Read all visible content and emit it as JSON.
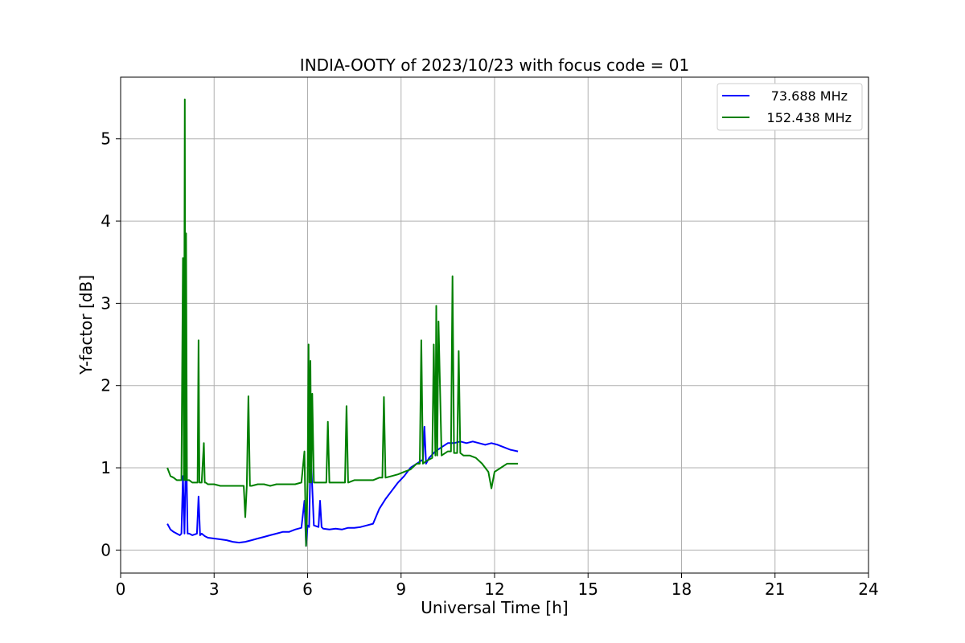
{
  "chart_data": {
    "type": "line",
    "title": "INDIA-OOTY of 2023/10/23 with focus code = 01",
    "xlabel": "Universal Time [h]",
    "ylabel": "Y-factor [dB]",
    "xlim": [
      0,
      24
    ],
    "ylim": [
      -0.28,
      5.75
    ],
    "xticks": [
      0,
      3,
      6,
      9,
      12,
      15,
      18,
      21,
      24
    ],
    "yticks": [
      0,
      1,
      2,
      3,
      4,
      5
    ],
    "grid": true,
    "legend_position": "top-right",
    "series": [
      {
        "name": "73.688 MHz",
        "color": "#0000ff",
        "x": [
          1.5,
          1.6,
          1.7,
          1.8,
          1.9,
          1.95,
          2.0,
          2.05,
          2.1,
          2.15,
          2.2,
          2.3,
          2.45,
          2.5,
          2.55,
          2.6,
          2.7,
          2.8,
          3.0,
          3.2,
          3.4,
          3.6,
          3.8,
          4.0,
          4.2,
          4.4,
          4.6,
          4.8,
          5.0,
          5.2,
          5.4,
          5.6,
          5.8,
          5.9,
          5.95,
          6.0,
          6.05,
          6.1,
          6.2,
          6.35,
          6.4,
          6.45,
          6.5,
          6.7,
          6.9,
          7.1,
          7.3,
          7.5,
          7.7,
          7.9,
          8.1,
          8.3,
          8.5,
          8.7,
          8.9,
          9.1,
          9.3,
          9.5,
          9.7,
          9.75,
          9.8,
          9.9,
          10.1,
          10.3,
          10.5,
          10.7,
          10.9,
          11.1,
          11.3,
          11.5,
          11.7,
          11.9,
          12.1,
          12.3,
          12.5,
          12.75
        ],
        "y": [
          0.32,
          0.25,
          0.22,
          0.2,
          0.18,
          0.2,
          0.9,
          0.2,
          1.3,
          0.2,
          0.2,
          0.18,
          0.2,
          0.65,
          0.18,
          0.2,
          0.17,
          0.15,
          0.14,
          0.13,
          0.12,
          0.1,
          0.09,
          0.1,
          0.12,
          0.14,
          0.16,
          0.18,
          0.2,
          0.22,
          0.22,
          0.25,
          0.27,
          0.6,
          0.05,
          0.3,
          0.28,
          1.2,
          0.3,
          0.28,
          0.6,
          0.28,
          0.26,
          0.25,
          0.26,
          0.25,
          0.27,
          0.27,
          0.28,
          0.3,
          0.32,
          0.5,
          0.62,
          0.72,
          0.82,
          0.9,
          1.0,
          1.05,
          1.1,
          1.5,
          1.05,
          1.12,
          1.2,
          1.25,
          1.3,
          1.3,
          1.32,
          1.3,
          1.32,
          1.3,
          1.28,
          1.3,
          1.28,
          1.25,
          1.22,
          1.2
        ]
      },
      {
        "name": "152.438 MHz",
        "color": "#008000",
        "x": [
          1.5,
          1.6,
          1.7,
          1.8,
          1.9,
          1.95,
          2.0,
          2.03,
          2.06,
          2.08,
          2.1,
          2.13,
          2.16,
          2.2,
          2.3,
          2.4,
          2.47,
          2.5,
          2.53,
          2.6,
          2.67,
          2.7,
          2.73,
          2.8,
          3.0,
          3.2,
          3.4,
          3.6,
          3.8,
          3.95,
          4.0,
          4.05,
          4.1,
          4.15,
          4.2,
          4.4,
          4.6,
          4.8,
          5.0,
          5.2,
          5.4,
          5.6,
          5.8,
          5.9,
          5.95,
          6.0,
          6.03,
          6.06,
          6.09,
          6.12,
          6.15,
          6.2,
          6.4,
          6.6,
          6.65,
          6.7,
          6.9,
          7.1,
          7.2,
          7.25,
          7.3,
          7.5,
          7.7,
          7.9,
          8.1,
          8.3,
          8.4,
          8.45,
          8.5,
          8.7,
          8.9,
          9.1,
          9.3,
          9.5,
          9.6,
          9.65,
          9.7,
          9.8,
          9.9,
          10.0,
          10.05,
          10.1,
          10.13,
          10.16,
          10.2,
          10.3,
          10.5,
          10.6,
          10.65,
          10.7,
          10.8,
          10.85,
          10.9,
          11.0,
          11.2,
          11.4,
          11.6,
          11.8,
          11.9,
          12.0,
          12.2,
          12.4,
          12.6,
          12.75
        ],
        "y": [
          1.0,
          0.9,
          0.88,
          0.85,
          0.85,
          0.85,
          3.55,
          0.85,
          5.48,
          0.85,
          3.85,
          0.85,
          0.85,
          0.85,
          0.82,
          0.82,
          0.82,
          2.55,
          0.82,
          0.82,
          1.3,
          0.82,
          0.82,
          0.8,
          0.8,
          0.78,
          0.78,
          0.78,
          0.78,
          0.78,
          0.4,
          0.78,
          1.87,
          0.78,
          0.78,
          0.8,
          0.8,
          0.78,
          0.8,
          0.8,
          0.8,
          0.8,
          0.82,
          1.2,
          0.05,
          0.82,
          2.5,
          0.82,
          2.3,
          0.82,
          1.9,
          0.82,
          0.82,
          0.82,
          1.56,
          0.82,
          0.82,
          0.82,
          0.82,
          1.75,
          0.82,
          0.85,
          0.85,
          0.85,
          0.85,
          0.88,
          0.88,
          1.86,
          0.88,
          0.9,
          0.92,
          0.95,
          0.98,
          1.05,
          1.05,
          2.55,
          1.05,
          1.08,
          1.1,
          1.12,
          2.5,
          1.15,
          2.97,
          1.15,
          2.78,
          1.15,
          1.2,
          1.2,
          3.33,
          1.18,
          1.18,
          2.42,
          1.18,
          1.15,
          1.15,
          1.12,
          1.05,
          0.95,
          0.75,
          0.95,
          1.0,
          1.05,
          1.05,
          1.05
        ]
      }
    ]
  }
}
